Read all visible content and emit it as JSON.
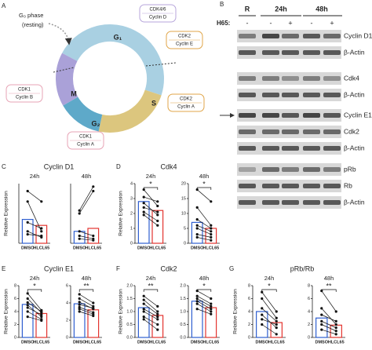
{
  "figure": {
    "panel_labels": [
      "A",
      "B",
      "C",
      "D",
      "E",
      "F",
      "G"
    ],
    "diagram": {
      "g0": "G₀ phase",
      "g0_note": "(resting)",
      "phases": [
        "G₁",
        "S",
        "G₂",
        "M"
      ],
      "complexes": [
        [
          "CDK4/6",
          "Cyclin D"
        ],
        [
          "CDK2",
          "Cyclin E"
        ],
        [
          "CDK2",
          "Cyclin A"
        ],
        [
          "CDK1",
          "Cyclin A"
        ],
        [
          "CDK1",
          "Cyclin B"
        ]
      ]
    },
    "blot": {
      "lane_groups": [
        "R",
        "24h",
        "48h"
      ],
      "treatment_label": "H65:",
      "treatments": [
        "-",
        "-",
        "+",
        "-",
        "+"
      ],
      "rows": [
        "Cyclin D1",
        "β-Actin",
        "Cdk4",
        "β-Actin",
        "Cyclin E1",
        "Cdk2",
        "β-Actin",
        "pRb",
        "Rb",
        "β-Actin"
      ]
    },
    "chart_panels": [
      {
        "title": "Cyclin D1",
        "ylabel": "Relative Expression"
      },
      {
        "title": "Cdk4",
        "ylabel": "Relative Expression"
      },
      {
        "title": "Cyclin E1",
        "ylabel": "Relative Expression"
      },
      {
        "title": "Cdk2",
        "ylabel": "Relative Expression"
      },
      {
        "title": "pRb/Rb",
        "ylabel": "Relative Expression"
      }
    ]
  },
  "chart_data": [
    {
      "type": "paired-bar",
      "title": "24h",
      "categories": [
        "DMSO",
        "HLCL65"
      ],
      "colors": [
        "#2f5fd0",
        "#e3342f"
      ],
      "values": [
        16,
        12
      ],
      "pairs": [
        [
          35,
          28
        ],
        [
          28,
          8
        ],
        [
          14,
          10
        ],
        [
          8,
          4
        ],
        [
          6,
          5
        ]
      ],
      "ylim": [
        0,
        40
      ]
    },
    {
      "type": "paired-bar",
      "title": "48h",
      "categories": [
        "DMSO",
        "HLCL65"
      ],
      "colors": [
        "#2f5fd0",
        "#e3342f"
      ],
      "values": [
        8,
        10
      ],
      "pairs": [
        [
          22,
          38
        ],
        [
          20,
          35
        ],
        [
          8,
          5
        ],
        [
          5,
          3
        ],
        [
          3,
          2
        ]
      ],
      "ylim": [
        0,
        40
      ]
    },
    {
      "type": "paired-bar",
      "title": "24h",
      "categories": [
        "DMSO",
        "HLCL65"
      ],
      "colors": [
        "#2f5fd0",
        "#e3342f"
      ],
      "values": [
        2.8,
        2.2
      ],
      "pairs": [
        [
          3.6,
          2.5
        ],
        [
          3.1,
          2.8
        ],
        [
          2.7,
          1.9
        ],
        [
          2.4,
          2.1
        ],
        [
          2.1,
          1.5
        ],
        [
          1.9,
          1.2
        ]
      ],
      "ylim": [
        0,
        4
      ],
      "yticks": [
        0,
        1,
        2,
        3,
        4
      ],
      "annotation": "*"
    },
    {
      "type": "paired-bar",
      "title": "48h",
      "categories": [
        "DMSO",
        "HLCL65"
      ],
      "colors": [
        "#2f5fd0",
        "#e3342f"
      ],
      "values": [
        7,
        5
      ],
      "pairs": [
        [
          18,
          14
        ],
        [
          12,
          6
        ],
        [
          8,
          5
        ],
        [
          6,
          4
        ],
        [
          5,
          3
        ],
        [
          3,
          2
        ],
        [
          2,
          1
        ]
      ],
      "ylim": [
        0,
        20
      ],
      "yticks": [
        0,
        5,
        10,
        15,
        20
      ],
      "annotation": "*"
    },
    {
      "type": "paired-bar",
      "title": "24h",
      "categories": [
        "DMSO",
        "HLCL65"
      ],
      "colors": [
        "#2f5fd0",
        "#e3342f"
      ],
      "values": [
        5.1,
        3.7
      ],
      "pairs": [
        [
          6.8,
          4.2
        ],
        [
          6.0,
          3.8
        ],
        [
          5.4,
          4.0
        ],
        [
          5.0,
          3.2
        ],
        [
          4.6,
          3.5
        ],
        [
          4.0,
          2.8
        ],
        [
          3.2,
          2.6
        ]
      ],
      "ylim": [
        0,
        8
      ],
      "yticks": [
        0,
        2,
        4,
        6,
        8
      ],
      "annotation": "*"
    },
    {
      "type": "paired-bar",
      "title": "48h",
      "categories": [
        "DMSO",
        "HLCL65"
      ],
      "colors": [
        "#2f5fd0",
        "#e3342f"
      ],
      "values": [
        3.9,
        3.2
      ],
      "pairs": [
        [
          5.0,
          4.0
        ],
        [
          4.5,
          3.6
        ],
        [
          4.1,
          3.3
        ],
        [
          3.8,
          3.4
        ],
        [
          3.5,
          2.9
        ],
        [
          3.3,
          2.7
        ],
        [
          3.0,
          2.5
        ]
      ],
      "ylim": [
        0,
        6
      ],
      "yticks": [
        0,
        2,
        4,
        6
      ],
      "annotation": "**"
    },
    {
      "type": "paired-bar",
      "title": "24h",
      "categories": [
        "DMSO",
        "HLCL65"
      ],
      "colors": [
        "#2f5fd0",
        "#e3342f"
      ],
      "values": [
        1.15,
        0.85
      ],
      "pairs": [
        [
          1.6,
          1.2
        ],
        [
          1.45,
          1.0
        ],
        [
          1.3,
          0.9
        ],
        [
          1.1,
          0.8
        ],
        [
          1.0,
          0.7
        ],
        [
          0.8,
          0.5
        ],
        [
          0.7,
          0.3
        ]
      ],
      "ylim": [
        0,
        2
      ],
      "yticks": [
        {
          "value": 0,
          "label": "0.0"
        },
        0.5,
        {
          "value": 1,
          "label": "1.0"
        },
        1.5,
        {
          "value": 2,
          "label": "2.0"
        }
      ],
      "annotation": "**"
    },
    {
      "type": "paired-bar",
      "title": "48h",
      "categories": [
        "DMSO",
        "HLCL65"
      ],
      "colors": [
        "#2f5fd0",
        "#e3342f"
      ],
      "values": [
        1.4,
        1.15
      ],
      "pairs": [
        [
          1.8,
          1.5
        ],
        [
          1.6,
          1.3
        ],
        [
          1.5,
          1.2
        ],
        [
          1.4,
          1.1
        ],
        [
          1.3,
          1.0
        ],
        [
          1.1,
          0.9
        ]
      ],
      "ylim": [
        0,
        2
      ],
      "yticks": [
        {
          "value": 0,
          "label": "0.0"
        },
        0.5,
        {
          "value": 1,
          "label": "1.0"
        },
        1.5,
        {
          "value": 2,
          "label": "2.0"
        }
      ],
      "annotation": "*"
    },
    {
      "type": "paired-bar",
      "title": "24h",
      "categories": [
        "DMSO",
        "HLCL65"
      ],
      "colors": [
        "#2f5fd0",
        "#e3342f"
      ],
      "values": [
        4.0,
        2.3
      ],
      "pairs": [
        [
          7,
          4
        ],
        [
          6,
          3
        ],
        [
          4.5,
          2.5
        ],
        [
          3.5,
          1.5
        ],
        [
          2.8,
          2
        ],
        [
          2,
          0.5
        ]
      ],
      "ylim": [
        0,
        8
      ],
      "yticks": [
        0,
        2,
        4,
        6,
        8
      ],
      "annotation": "*"
    },
    {
      "type": "paired-bar",
      "title": "48h",
      "categories": [
        "DMSO",
        "HLCL65"
      ],
      "colors": [
        "#2f5fd0",
        "#e3342f"
      ],
      "values": [
        3.0,
        1.9
      ],
      "pairs": [
        [
          7.2,
          4
        ],
        [
          4.5,
          2
        ],
        [
          3.5,
          2.5
        ],
        [
          2.5,
          1.5
        ],
        [
          2,
          1
        ],
        [
          1.2,
          0.5
        ]
      ],
      "ylim": [
        0,
        8
      ],
      "yticks": [
        0,
        2,
        4,
        6,
        8
      ],
      "annotation": "**"
    }
  ]
}
